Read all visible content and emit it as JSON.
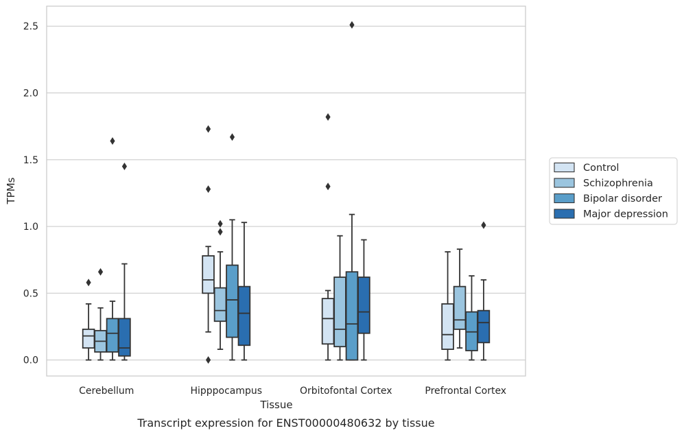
{
  "chart_data": {
    "type": "box",
    "title": "Transcript expression for ENST00000480632 by tissue",
    "xlabel": "Tissue",
    "ylabel": "TPMs",
    "ylim": [
      -0.12,
      2.65
    ],
    "yticks": [
      "0.0",
      "0.5",
      "1.0",
      "1.5",
      "2.0",
      "2.5"
    ],
    "ytick_values": [
      0,
      0.5,
      1.0,
      1.5,
      2.0,
      2.5
    ],
    "grid": "horizontal",
    "legend_position": "right",
    "categories": [
      "Cerebellum",
      "Hipppocampus",
      "Orbitofontal Cortex",
      "Prefrontal Cortex"
    ],
    "series": [
      {
        "name": "Control",
        "color": "#d3e4f3",
        "boxes": [
          {
            "whislo": 0.0,
            "q1": 0.09,
            "med": 0.18,
            "q3": 0.23,
            "whishi": 0.42,
            "fliers": [
              0.58
            ]
          },
          {
            "whislo": 0.21,
            "q1": 0.5,
            "med": 0.6,
            "q3": 0.78,
            "whishi": 0.85,
            "fliers": [
              1.73,
              1.28,
              0.0
            ]
          },
          {
            "whislo": 0.0,
            "q1": 0.12,
            "med": 0.31,
            "q3": 0.46,
            "whishi": 0.52,
            "fliers": [
              1.82,
              1.3
            ]
          },
          {
            "whislo": 0.0,
            "q1": 0.08,
            "med": 0.19,
            "q3": 0.42,
            "whishi": 0.81,
            "fliers": []
          }
        ]
      },
      {
        "name": "Schizophrenia",
        "color": "#9bc5df",
        "boxes": [
          {
            "whislo": 0.0,
            "q1": 0.06,
            "med": 0.14,
            "q3": 0.22,
            "whishi": 0.39,
            "fliers": [
              0.66
            ]
          },
          {
            "whislo": 0.08,
            "q1": 0.29,
            "med": 0.37,
            "q3": 0.54,
            "whishi": 0.81,
            "fliers": [
              1.02,
              0.96
            ]
          },
          {
            "whislo": 0.0,
            "q1": 0.1,
            "med": 0.23,
            "q3": 0.62,
            "whishi": 0.93,
            "fliers": []
          },
          {
            "whislo": 0.09,
            "q1": 0.23,
            "med": 0.3,
            "q3": 0.55,
            "whishi": 0.83,
            "fliers": []
          }
        ]
      },
      {
        "name": "Bipolar disorder",
        "color": "#5a9ec9",
        "boxes": [
          {
            "whislo": 0.0,
            "q1": 0.06,
            "med": 0.2,
            "q3": 0.31,
            "whishi": 0.44,
            "fliers": [
              1.64
            ]
          },
          {
            "whislo": 0.0,
            "q1": 0.17,
            "med": 0.45,
            "q3": 0.71,
            "whishi": 1.05,
            "fliers": [
              1.67
            ]
          },
          {
            "whislo": 0.0,
            "q1": 0.0,
            "med": 0.27,
            "q3": 0.66,
            "whishi": 1.09,
            "fliers": [
              2.51
            ]
          },
          {
            "whislo": 0.0,
            "q1": 0.07,
            "med": 0.21,
            "q3": 0.36,
            "whishi": 0.63,
            "fliers": []
          }
        ]
      },
      {
        "name": "Major depression",
        "color": "#2a6eb0",
        "boxes": [
          {
            "whislo": 0.0,
            "q1": 0.03,
            "med": 0.09,
            "q3": 0.31,
            "whishi": 0.72,
            "fliers": [
              1.45
            ]
          },
          {
            "whislo": 0.0,
            "q1": 0.11,
            "med": 0.35,
            "q3": 0.55,
            "whishi": 1.03,
            "fliers": []
          },
          {
            "whislo": 0.0,
            "q1": 0.2,
            "med": 0.36,
            "q3": 0.62,
            "whishi": 0.9,
            "fliers": []
          },
          {
            "whislo": 0.0,
            "q1": 0.13,
            "med": 0.28,
            "q3": 0.37,
            "whishi": 0.6,
            "fliers": [
              1.01
            ]
          }
        ]
      }
    ],
    "style": {
      "line_color": "#333333",
      "grid_color": "#cccccc",
      "frame_color": "#cccccc"
    }
  }
}
